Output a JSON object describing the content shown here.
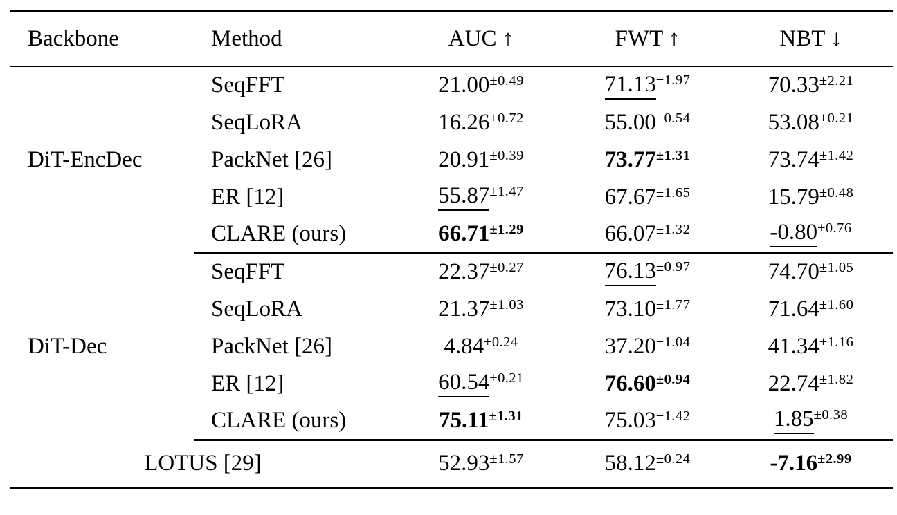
{
  "table": {
    "headers": {
      "backbone": "Backbone",
      "method": "Method",
      "auc": "AUC ↑",
      "fwt": "FWT ↑",
      "nbt": "NBT ↓"
    },
    "groups": [
      {
        "backbone": "DiT-EncDec",
        "rows": [
          {
            "method": "SeqFFT",
            "auc": {
              "value": "21.00",
              "err": "±0.49",
              "bold": false,
              "underline": false
            },
            "fwt": {
              "value": "71.13",
              "err": "±1.97",
              "bold": false,
              "underline": true
            },
            "nbt": {
              "value": "70.33",
              "err": "±2.21",
              "bold": false,
              "underline": false
            }
          },
          {
            "method": "SeqLoRA",
            "auc": {
              "value": "16.26",
              "err": "±0.72",
              "bold": false,
              "underline": false
            },
            "fwt": {
              "value": "55.00",
              "err": "±0.54",
              "bold": false,
              "underline": false
            },
            "nbt": {
              "value": "53.08",
              "err": "±0.21",
              "bold": false,
              "underline": false
            }
          },
          {
            "method": "PackNet [26]",
            "auc": {
              "value": "20.91",
              "err": "±0.39",
              "bold": false,
              "underline": false
            },
            "fwt": {
              "value": "73.77",
              "err": "±1.31",
              "bold": true,
              "underline": false
            },
            "nbt": {
              "value": "73.74",
              "err": "±1.42",
              "bold": false,
              "underline": false
            }
          },
          {
            "method": "ER [12]",
            "auc": {
              "value": "55.87",
              "err": "±1.47",
              "bold": false,
              "underline": true
            },
            "fwt": {
              "value": "67.67",
              "err": "±1.65",
              "bold": false,
              "underline": false
            },
            "nbt": {
              "value": "15.79",
              "err": "±0.48",
              "bold": false,
              "underline": false
            }
          },
          {
            "method": "CLARE (ours)",
            "auc": {
              "value": "66.71",
              "err": "±1.29",
              "bold": true,
              "underline": false
            },
            "fwt": {
              "value": "66.07",
              "err": "±1.32",
              "bold": false,
              "underline": false
            },
            "nbt": {
              "value": "-0.80",
              "err": "±0.76",
              "bold": false,
              "underline": true
            }
          }
        ]
      },
      {
        "backbone": "DiT-Dec",
        "rows": [
          {
            "method": "SeqFFT",
            "auc": {
              "value": "22.37",
              "err": "±0.27",
              "bold": false,
              "underline": false
            },
            "fwt": {
              "value": "76.13",
              "err": "±0.97",
              "bold": false,
              "underline": true
            },
            "nbt": {
              "value": "74.70",
              "err": "±1.05",
              "bold": false,
              "underline": false
            }
          },
          {
            "method": "SeqLoRA",
            "auc": {
              "value": "21.37",
              "err": "±1.03",
              "bold": false,
              "underline": false
            },
            "fwt": {
              "value": "73.10",
              "err": "±1.77",
              "bold": false,
              "underline": false
            },
            "nbt": {
              "value": "71.64",
              "err": "±1.60",
              "bold": false,
              "underline": false
            }
          },
          {
            "method": "PackNet [26]",
            "auc": {
              "value": "4.84",
              "err": "±0.24",
              "bold": false,
              "underline": false
            },
            "fwt": {
              "value": "37.20",
              "err": "±1.04",
              "bold": false,
              "underline": false
            },
            "nbt": {
              "value": "41.34",
              "err": "±1.16",
              "bold": false,
              "underline": false
            }
          },
          {
            "method": "ER [12]",
            "auc": {
              "value": "60.54",
              "err": "±0.21",
              "bold": false,
              "underline": true
            },
            "fwt": {
              "value": "76.60",
              "err": "±0.94",
              "bold": true,
              "underline": false
            },
            "nbt": {
              "value": "22.74",
              "err": "±1.82",
              "bold": false,
              "underline": false
            }
          },
          {
            "method": "CLARE (ours)",
            "auc": {
              "value": "75.11",
              "err": "±1.31",
              "bold": true,
              "underline": false
            },
            "fwt": {
              "value": "75.03",
              "err": "±1.42",
              "bold": false,
              "underline": false
            },
            "nbt": {
              "value": "1.85",
              "err": "±0.38",
              "bold": false,
              "underline": true
            }
          }
        ]
      }
    ],
    "footer": {
      "label": "LOTUS [29]",
      "auc": {
        "value": "52.93",
        "err": "±1.57",
        "bold": false,
        "underline": false
      },
      "fwt": {
        "value": "58.12",
        "err": "±0.24",
        "bold": false,
        "underline": false
      },
      "nbt": {
        "value": "-7.16",
        "err": "±2.99",
        "bold": true,
        "underline": false
      }
    }
  }
}
